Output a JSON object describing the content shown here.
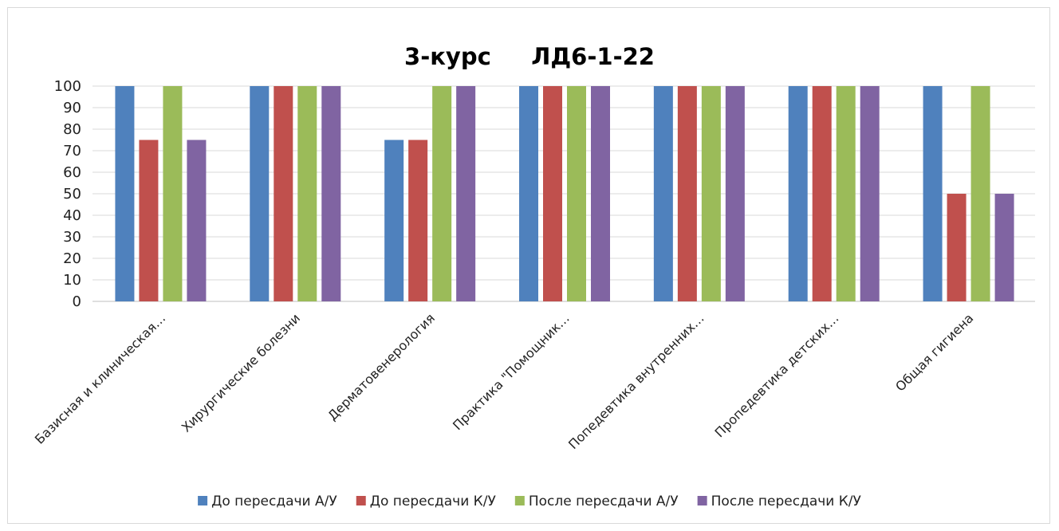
{
  "chart_data": {
    "type": "bar",
    "title": "3-курс     ЛД6-1-22",
    "categories": [
      "Базисная и клиническая…",
      "Хирургические болезни",
      "Дерматовенерология",
      "Практика \"Помощник…",
      "Попедевтика внутренних…",
      "Пропедевтика детских…",
      "Общая гигиена"
    ],
    "series": [
      {
        "name": "До пересдачи А/У",
        "color": "#4F81BD",
        "values": [
          100,
          100,
          75,
          100,
          100,
          100,
          100
        ]
      },
      {
        "name": "До пересдачи К/У",
        "color": "#C0504D",
        "values": [
          75,
          100,
          75,
          100,
          100,
          100,
          50
        ]
      },
      {
        "name": "После пересдачи А/У",
        "color": "#9BBB59",
        "values": [
          100,
          100,
          100,
          100,
          100,
          100,
          100
        ]
      },
      {
        "name": "После пересдачи К/У",
        "color": "#8064A2",
        "values": [
          75,
          100,
          100,
          100,
          100,
          100,
          50
        ]
      }
    ],
    "ylim": [
      0,
      100
    ],
    "yticks": [
      "0",
      "10",
      "20",
      "30",
      "40",
      "50",
      "60",
      "70",
      "80",
      "90",
      "100"
    ],
    "grid": true,
    "legend_position": "bottom"
  }
}
